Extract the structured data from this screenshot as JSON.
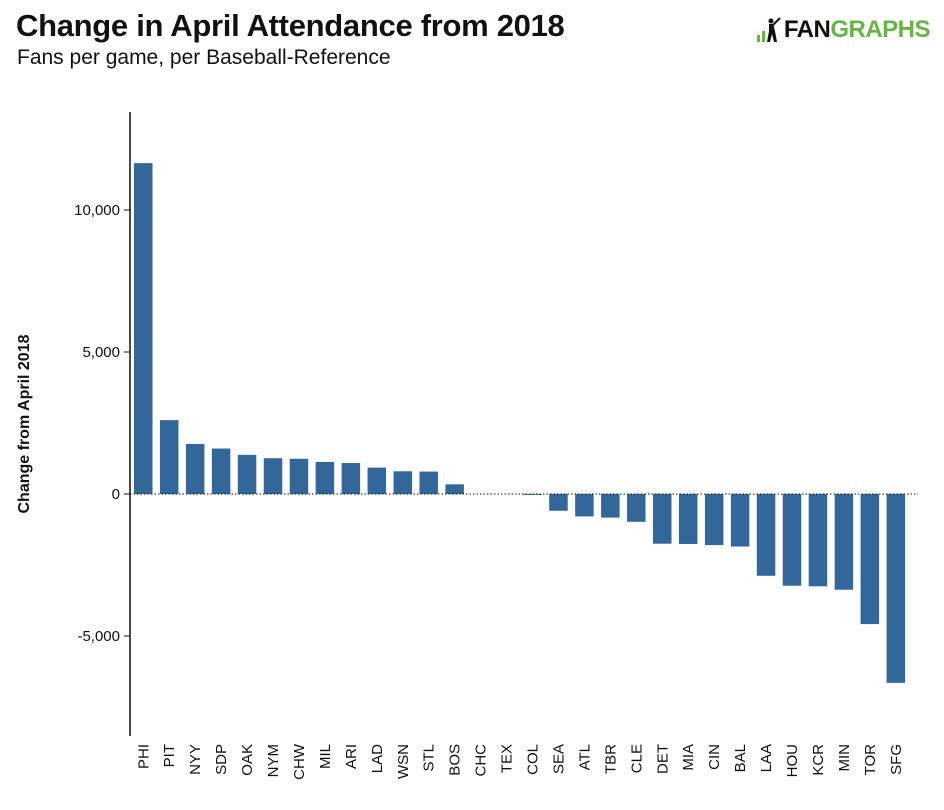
{
  "header": {
    "title": "Change in April Attendance from 2018",
    "subtitle": "Fans per game, per Baseball-Reference"
  },
  "logo": {
    "text_dark": "FAN",
    "text_green": "GRAPHS",
    "icon": "batter-silhouette-icon",
    "accent_color": "#67b547"
  },
  "chart_data": {
    "type": "bar",
    "ylabel": "Change from April 2018",
    "xlabel": "",
    "ylim": [
      -8500,
      13000
    ],
    "yticks": [
      -5000,
      0,
      5000,
      10000
    ],
    "ytick_labels": [
      "-5,000",
      "0",
      "5,000",
      "10,000"
    ],
    "bar_color": "#336699",
    "zero_line": "dotted",
    "grid": false,
    "categories": [
      "PHI",
      "PIT",
      "NYY",
      "SDP",
      "OAK",
      "NYM",
      "CHW",
      "MIL",
      "ARI",
      "LAD",
      "WSN",
      "STL",
      "BOS",
      "CHC",
      "TEX",
      "COL",
      "SEA",
      "ATL",
      "TBR",
      "CLE",
      "DET",
      "MIA",
      "CIN",
      "BAL",
      "LAA",
      "HOU",
      "KCR",
      "MIN",
      "TOR",
      "SFG"
    ],
    "values": [
      11650,
      2600,
      1760,
      1600,
      1380,
      1260,
      1240,
      1130,
      1090,
      930,
      800,
      790,
      340,
      0,
      0,
      -30,
      -590,
      -790,
      -830,
      -980,
      -1750,
      -1760,
      -1800,
      -1850,
      -2880,
      -3230,
      -3250,
      -3370,
      -4580,
      -6650
    ]
  }
}
